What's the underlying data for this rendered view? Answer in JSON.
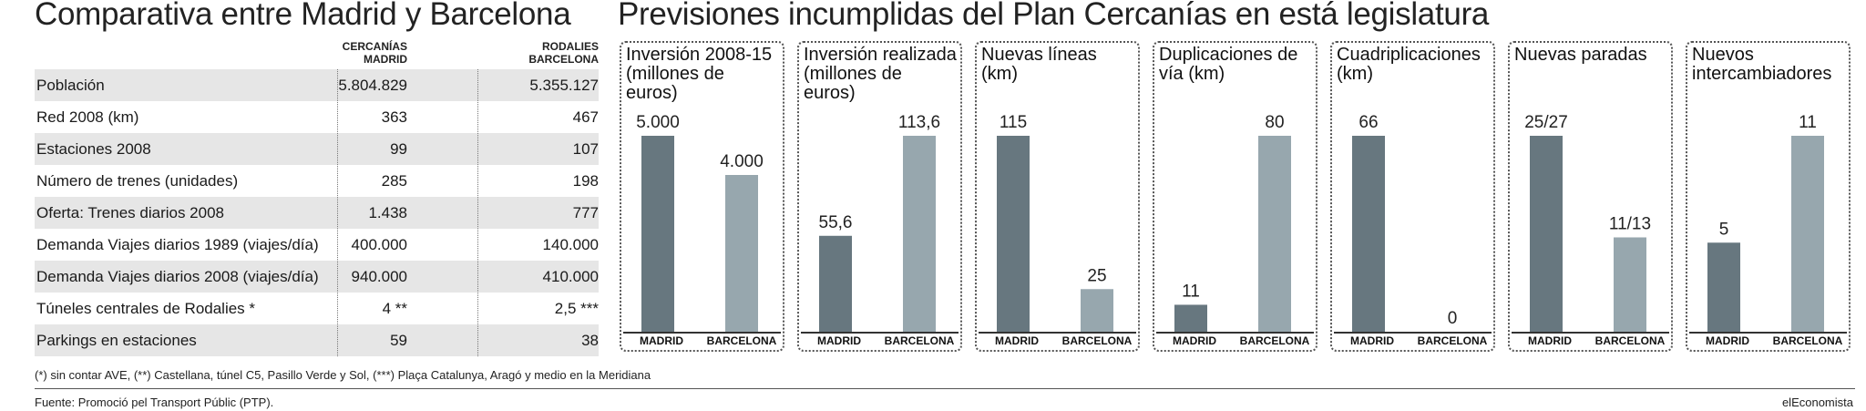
{
  "left_title": "Comparativa entre Madrid y Barcelona",
  "right_title": "Previsiones incumplidas del Plan Cercanías en está legislatura",
  "table": {
    "col_madrid": [
      "CERCANÍAS",
      "MADRID"
    ],
    "col_barcelona": [
      "RODALIES",
      "BARCELONA"
    ],
    "rows": [
      {
        "label": "Población",
        "madrid": "5.804.829",
        "barcelona": "5.355.127"
      },
      {
        "label": "Red 2008 (km)",
        "madrid": "363",
        "barcelona": "467"
      },
      {
        "label": "Estaciones 2008",
        "madrid": "99",
        "barcelona": "107"
      },
      {
        "label": "Número de trenes (unidades)",
        "madrid": "285",
        "barcelona": "198"
      },
      {
        "label": "Oferta: Trenes diarios 2008",
        "madrid": "1.438",
        "barcelona": "777"
      },
      {
        "label": "Demanda Viajes diarios 1989 (viajes/día)",
        "madrid": "400.000",
        "barcelona": "140.000"
      },
      {
        "label": "Demanda Viajes diarios 2008 (viajes/día)",
        "madrid": "940.000",
        "barcelona": "410.000"
      },
      {
        "label": "Túneles centrales de Rodalies *",
        "madrid": "4 **",
        "barcelona": "2,5 ***"
      },
      {
        "label": "Parkings en estaciones",
        "madrid": "59",
        "barcelona": "38"
      }
    ]
  },
  "colors": {
    "madrid": "#67777f",
    "barcelona": "#97a7ae",
    "shade": "#e6e6e6"
  },
  "chart_data": [
    {
      "type": "bar",
      "title": "Inversión 2008-15 (millones de euros)",
      "categories": [
        "MADRID",
        "BARCELONA"
      ],
      "values": [
        5000,
        4000
      ],
      "value_labels": [
        "5.000",
        "4.000"
      ]
    },
    {
      "type": "bar",
      "title": "Inversión realizada (millones de euros)",
      "categories": [
        "MADRID",
        "BARCELONA"
      ],
      "values": [
        55.6,
        113.6
      ],
      "value_labels": [
        "55,6",
        "113,6"
      ]
    },
    {
      "type": "bar",
      "title": "Nuevas líneas (km)",
      "categories": [
        "MADRID",
        "BARCELONA"
      ],
      "values": [
        115,
        25
      ],
      "value_labels": [
        "115",
        "25"
      ]
    },
    {
      "type": "bar",
      "title": "Duplicaciones de vía (km)",
      "categories": [
        "MADRID",
        "BARCELONA"
      ],
      "values": [
        11,
        80
      ],
      "value_labels": [
        "11",
        "80"
      ]
    },
    {
      "type": "bar",
      "title": "Cuadriplicaciones (km)",
      "categories": [
        "MADRID",
        "BARCELONA"
      ],
      "values": [
        66,
        0
      ],
      "value_labels": [
        "66",
        "0"
      ]
    },
    {
      "type": "bar",
      "title": "Nuevas paradas",
      "categories": [
        "MADRID",
        "BARCELONA"
      ],
      "values": [
        27,
        13
      ],
      "value_labels": [
        "25/27",
        "11/13"
      ]
    },
    {
      "type": "bar",
      "title": "Nuevos intercambiadores",
      "categories": [
        "MADRID",
        "BARCELONA"
      ],
      "values": [
        5,
        11
      ],
      "value_labels": [
        "5",
        "11"
      ]
    }
  ],
  "footnote": "(*) sin contar AVE, (**) Castellana, túnel C5, Pasillo Verde y Sol, (***) Plaça Catalunya, Aragó y medio en la Meridiana",
  "source": "Fuente:  Promoció pel Transport Públic (PTP).",
  "brand": "elEconomista"
}
